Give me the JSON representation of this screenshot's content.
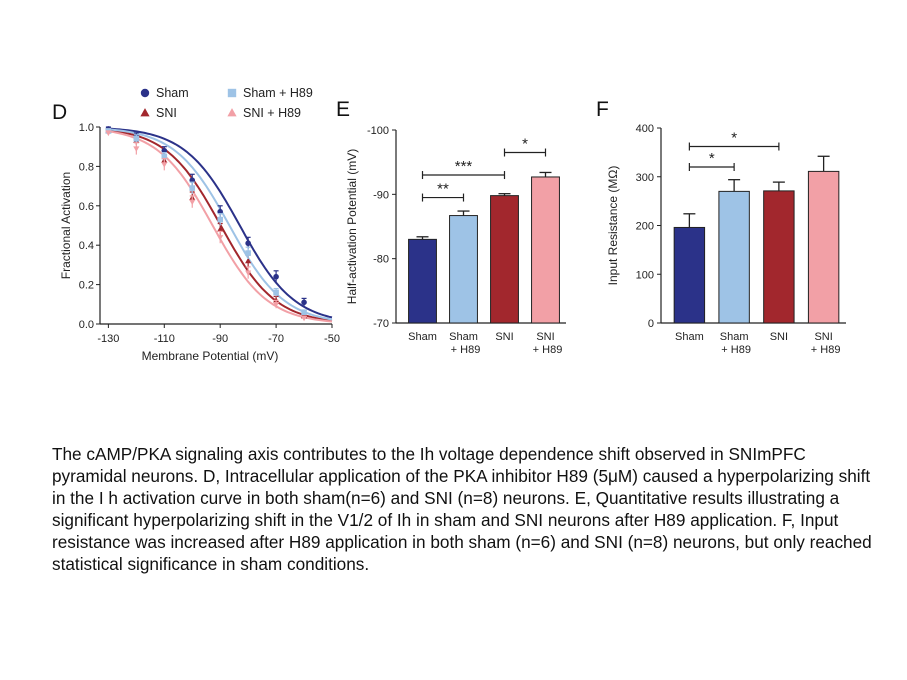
{
  "colors": {
    "sham": "#2b3289",
    "sni": "#a2272d",
    "sham_h89": "#9ec3e6",
    "sni_h89": "#f2a0a6",
    "axis": "#222222"
  },
  "panels": {
    "D": "D",
    "E": "E",
    "F": "F"
  },
  "chart_data": [
    {
      "panel": "D",
      "type": "line",
      "xlabel": "Membrane Potential (mV)",
      "ylabel": "Fractional Activation",
      "xlim": [
        -133,
        -50
      ],
      "ylim": [
        0,
        1.0
      ],
      "xticks": [
        -130,
        -110,
        -90,
        -70,
        -50
      ],
      "xtick_labels": [
        "-130",
        "-110",
        "-90",
        "-70",
        "-50"
      ],
      "yticks": [
        0,
        0.2,
        0.4,
        0.6,
        0.8,
        1.0
      ],
      "ytick_labels": [
        "0.0",
        "0.2",
        "0.4",
        "0.6",
        "0.8",
        "1.0"
      ],
      "legend_position": "top",
      "series": [
        {
          "name": "Sham",
          "color_key": "sham",
          "marker": "circle",
          "x": [
            -130,
            -120,
            -110,
            -100,
            -90,
            -80,
            -70,
            -60
          ],
          "y": [
            0.99,
            0.95,
            0.88,
            0.73,
            0.57,
            0.41,
            0.24,
            0.11
          ],
          "err": [
            0.01,
            0.02,
            0.02,
            0.03,
            0.03,
            0.03,
            0.03,
            0.02
          ],
          "fit_v_half": -83.0,
          "fit_k": 9.8
        },
        {
          "name": "SNI",
          "color_key": "sni",
          "marker": "triangle",
          "x": [
            -130,
            -120,
            -110,
            -100,
            -90,
            -80,
            -70,
            -60
          ],
          "y": [
            0.98,
            0.93,
            0.83,
            0.64,
            0.48,
            0.32,
            0.12,
            0.04
          ],
          "err": [
            0.01,
            0.02,
            0.02,
            0.03,
            0.03,
            0.03,
            0.02,
            0.01
          ],
          "fit_v_half": -89.8,
          "fit_k": 9.8
        },
        {
          "name": "Sham + H89",
          "color_key": "sham_h89",
          "marker": "square",
          "x": [
            -130,
            -120,
            -110,
            -100,
            -90,
            -80,
            -70,
            -60
          ],
          "y": [
            0.98,
            0.94,
            0.85,
            0.69,
            0.53,
            0.36,
            0.16,
            0.06
          ],
          "err": [
            0.01,
            0.02,
            0.02,
            0.03,
            0.03,
            0.03,
            0.02,
            0.01
          ],
          "fit_v_half": -86.7,
          "fit_k": 9.8
        },
        {
          "name": "SNI + H89",
          "color_key": "sni_h89",
          "marker": "triangle-down",
          "x": [
            -130,
            -120,
            -110,
            -100,
            -90,
            -80,
            -70,
            -60
          ],
          "y": [
            0.97,
            0.89,
            0.81,
            0.62,
            0.44,
            0.26,
            0.1,
            0.03
          ],
          "err": [
            0.01,
            0.03,
            0.03,
            0.03,
            0.03,
            0.03,
            0.02,
            0.01
          ],
          "fit_v_half": -92.7,
          "fit_k": 9.8
        }
      ]
    },
    {
      "panel": "E",
      "type": "bar",
      "ylabel": "Half-activation Potential (mV)",
      "ylim": [
        -70,
        -100
      ],
      "yticks": [
        -70,
        -80,
        -90,
        -100
      ],
      "ytick_labels": [
        "-70",
        "-80",
        "-90",
        "-100"
      ],
      "categories": [
        "Sham",
        "Sham\n+ H89",
        "SNI",
        "SNI\n+ H89"
      ],
      "category_lines": [
        [
          "Sham"
        ],
        [
          "Sham",
          "+ H89"
        ],
        [
          "SNI"
        ],
        [
          "SNI",
          "+ H89"
        ]
      ],
      "values": [
        -83.0,
        -86.7,
        -89.8,
        -92.7
      ],
      "errors": [
        0.4,
        0.7,
        0.3,
        0.7
      ],
      "color_keys": [
        "sham",
        "sham_h89",
        "sni",
        "sni_h89"
      ],
      "significance": [
        {
          "from": 0,
          "to": 1,
          "label": "**",
          "level": -89.5
        },
        {
          "from": 0,
          "to": 2,
          "label": "***",
          "level": -93.0
        },
        {
          "from": 2,
          "to": 3,
          "label": "*",
          "level": -96.5
        }
      ]
    },
    {
      "panel": "F",
      "type": "bar",
      "ylabel": "Input Resistance (MΩ)",
      "ylim": [
        0,
        400
      ],
      "yticks": [
        0,
        100,
        200,
        300,
        400
      ],
      "ytick_labels": [
        "0",
        "100",
        "200",
        "300",
        "400"
      ],
      "categories": [
        "Sham",
        "Sham\n+ H89",
        "SNI",
        "SNI\n+ H89"
      ],
      "category_lines": [
        [
          "Sham"
        ],
        [
          "Sham",
          "+ H89"
        ],
        [
          "SNI"
        ],
        [
          "SNI",
          "+ H89"
        ]
      ],
      "values": [
        196,
        270,
        271,
        311
      ],
      "errors": [
        28,
        24,
        18,
        31
      ],
      "color_keys": [
        "sham",
        "sham_h89",
        "sni",
        "sni_h89"
      ],
      "significance": [
        {
          "from": 0,
          "to": 1,
          "label": "*",
          "level": 320
        },
        {
          "from": 0,
          "to": 2,
          "label": "*",
          "level": 362
        }
      ]
    }
  ],
  "caption": "The cAMP/PKA signaling axis contributes to the Ih voltage dependence shift observed in SNImPFC pyramidal neurons. D, Intracellular application of the PKA inhibitor H89 (5μM) caused a hyperpolarizing shift in the I h activation curve in both sham(n=6) and SNI (n=8) neurons. E, Quantitative results illustrating a significant hyperpolarizing shift in the V1/2 of Ih in sham and SNI neurons after H89 application. F, Input resistance was increased after H89 application in both sham (n=6) and SNI (n=8) neurons, but only reached statistical significance in sham conditions."
}
